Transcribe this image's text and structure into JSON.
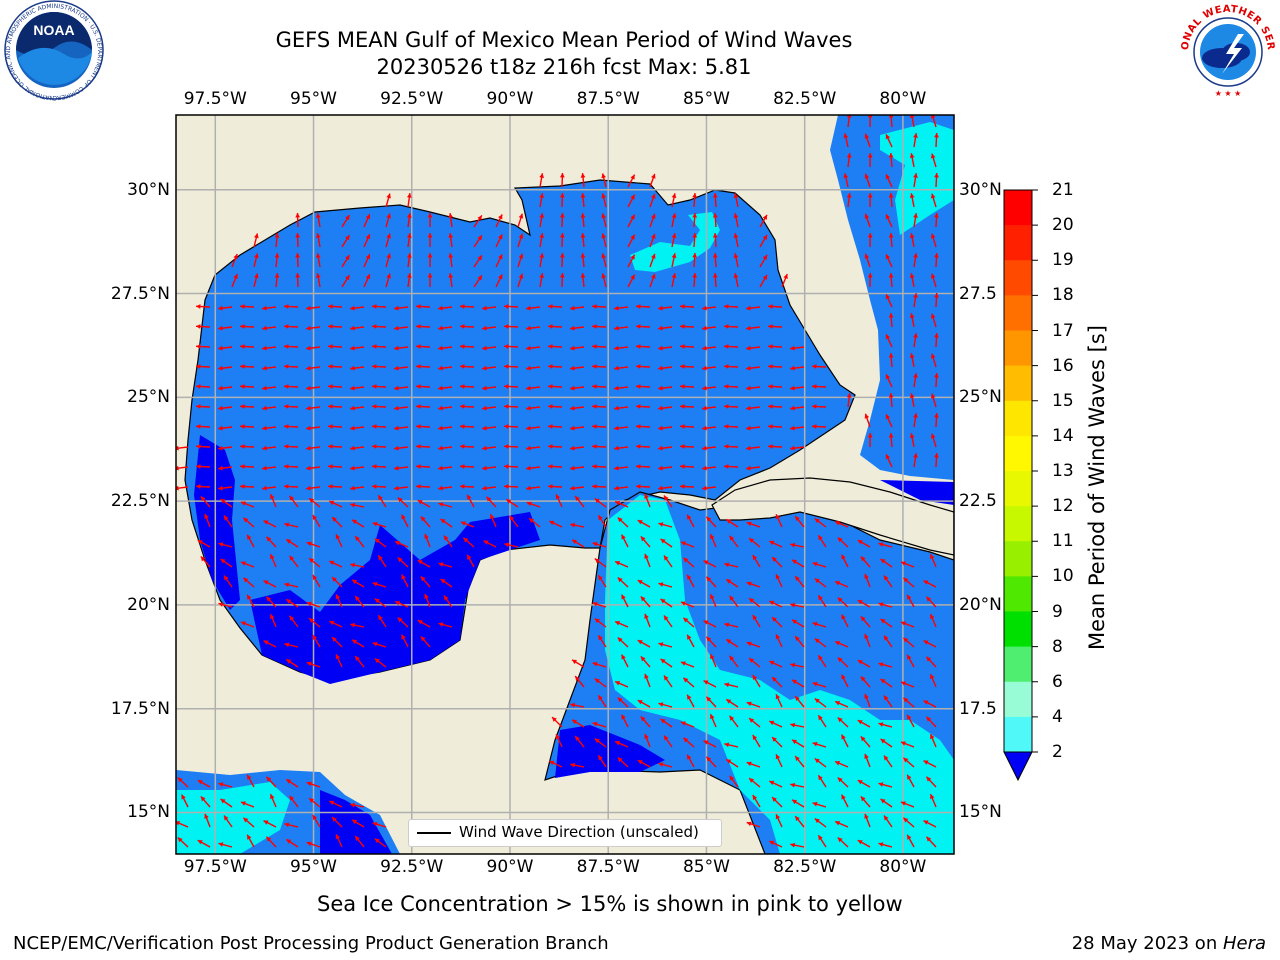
{
  "header": {
    "title_line1": "GEFS MEAN Gulf of Mexico Mean Period of Wind Waves",
    "title_line2": "20230526 t18z 216h fcst   Max: 5.81"
  },
  "logos": {
    "left": "NOAA",
    "left_ring": "NATIONAL OCEANIC AND ATMOSPHERIC ADMINISTRATION · U.S. DEPARTMENT OF COMMERCE",
    "right_ring": "NATIONAL WEATHER SERVICE"
  },
  "map": {
    "lon_range": [
      -98.5,
      -78.7
    ],
    "lat_range": [
      14.0,
      31.8
    ],
    "lon_ticks": [
      "97.5°W",
      "95°W",
      "92.5°W",
      "90°W",
      "87.5°W",
      "85°W",
      "82.5°W",
      "80°W"
    ],
    "lon_tick_values": [
      -97.5,
      -95,
      -92.5,
      -90,
      -87.5,
      -85,
      -82.5,
      -80
    ],
    "lat_ticks": [
      "30°N",
      "27.5°N",
      "25°N",
      "22.5°N",
      "20°N",
      "17.5°N",
      "15°N"
    ],
    "lat_ticks_right": [
      "30°N",
      "27.5",
      "25°N",
      "22.5",
      "20°N",
      "17.5",
      "15°N"
    ],
    "lat_tick_values": [
      30,
      27.5,
      25,
      22.5,
      20,
      17.5,
      15
    ],
    "legend": "Wind Wave Direction (unscaled)",
    "colors": {
      "land": "#efedd9",
      "water_2_4": "#1e7ff5",
      "water_4_6": "#00f2f2",
      "water_6_8": "#4df7f7",
      "water_lt2": "#0000f5",
      "arrow": "#ff0000",
      "grid": "#b0b0b0"
    }
  },
  "colorbar": {
    "title": "Mean Period of Wind Waves [s]",
    "labels": [
      "21",
      "20",
      "19",
      "18",
      "17",
      "16",
      "15",
      "14",
      "13",
      "12",
      "11",
      "10",
      "9",
      "8",
      "6",
      "4",
      "2"
    ],
    "colors": [
      "#ff0000",
      "#ff2000",
      "#ff4a00",
      "#ff7000",
      "#ff9600",
      "#ffbc00",
      "#ffe600",
      "#fff800",
      "#e8f800",
      "#c8f800",
      "#98f000",
      "#4ee800",
      "#00e000",
      "#50ee70",
      "#98fcd6",
      "#50f8f8",
      "#00f0f0",
      "#1e7ff5"
    ],
    "under_color": "#0000f5"
  },
  "notes": {
    "sea_ice": "Sea Ice Concentration > 15% is shown in pink to yellow"
  },
  "footer": {
    "left": "NCEP/EMC/Verification Post Processing Product Generation Branch",
    "right_date": "28 May 2023 on ",
    "right_machine": "Hera"
  }
}
